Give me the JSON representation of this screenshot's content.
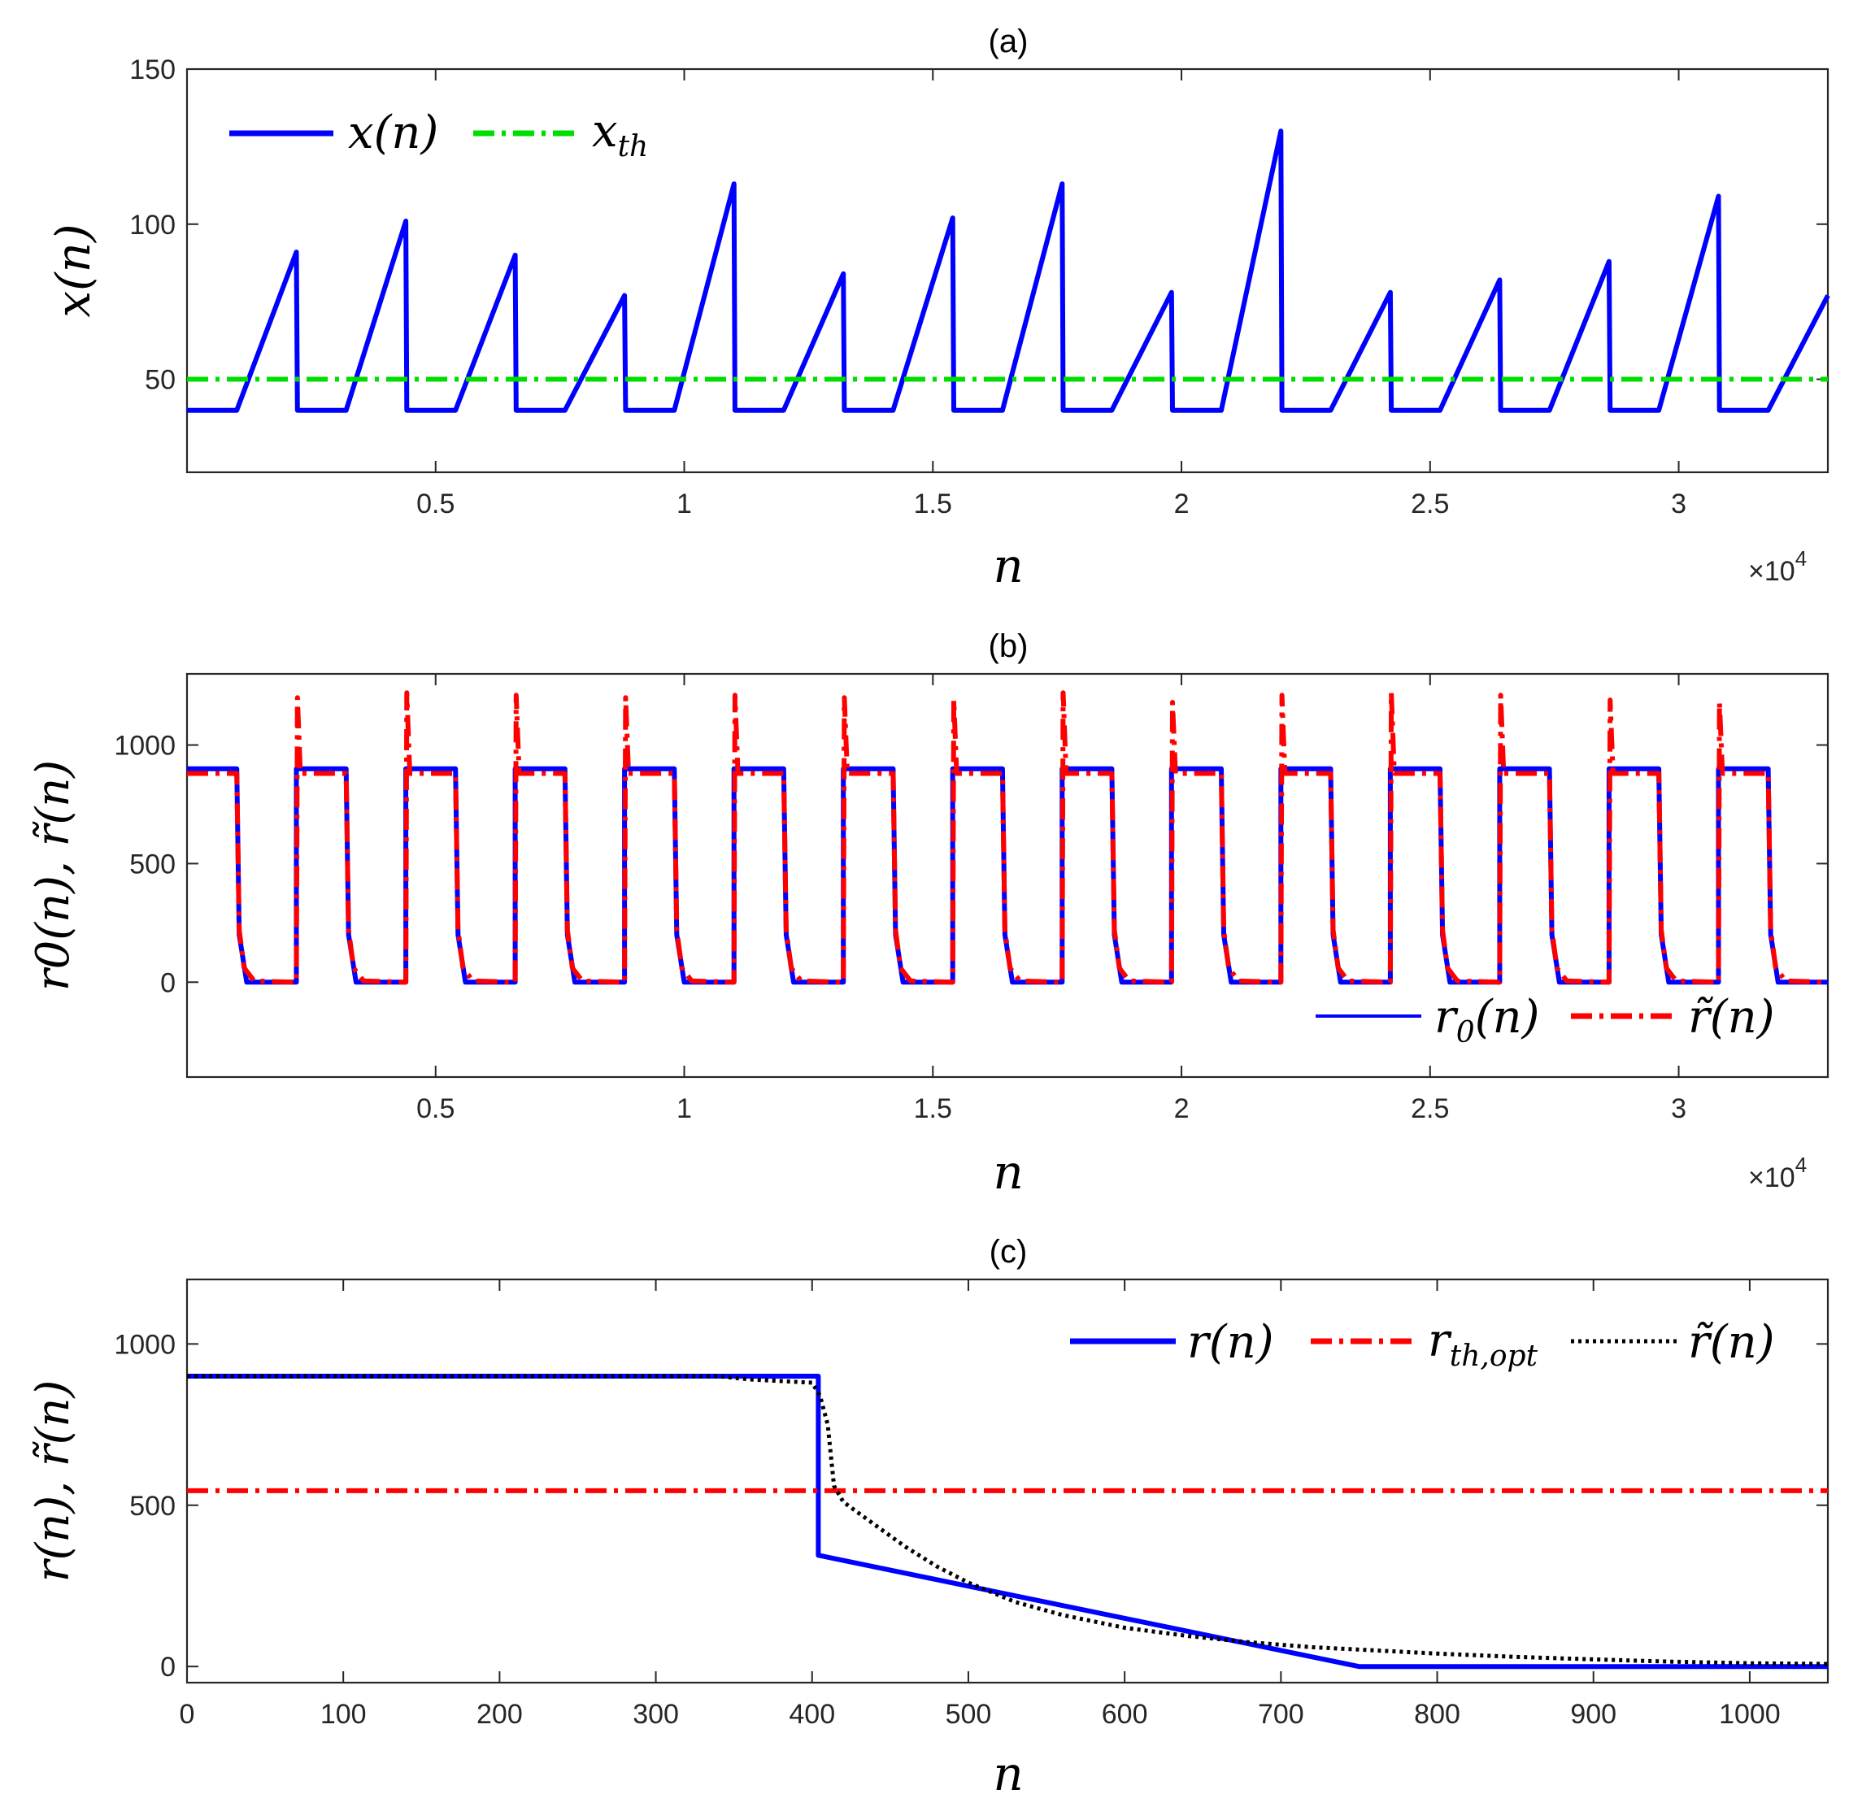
{
  "figure": {
    "colors": {
      "blue": "#0000ff",
      "green": "#00dd00",
      "red": "#ff0000",
      "black": "#000000",
      "axis": "#262626"
    }
  },
  "chart_data": [
    {
      "type": "line",
      "title": "(a)",
      "xlabel": "n",
      "ylabel": "x(n)",
      "x_exponent": "×10^4",
      "x_exponent_base": "×10",
      "x_exponent_power": "4",
      "xlim": [
        0,
        33000
      ],
      "ylim": [
        20,
        150
      ],
      "xticks": [
        5000,
        10000,
        15000,
        20000,
        25000,
        30000
      ],
      "xtick_labels": [
        "0.5",
        "1",
        "1.5",
        "2",
        "2.5",
        "3"
      ],
      "yticks": [
        50,
        100,
        150
      ],
      "ytick_labels": [
        "50",
        "100",
        "150"
      ],
      "legend_position": "top-left",
      "series": [
        {
          "name": "x(n)",
          "color": "#0000ff",
          "style": "solid",
          "x": [
            0,
            1000,
            2200,
            2220,
            3200,
            4400,
            4420,
            5400,
            6600,
            6620,
            7600,
            8800,
            8820,
            9800,
            11000,
            11020,
            12000,
            13200,
            13220,
            14200,
            15400,
            15420,
            16400,
            17600,
            17620,
            18600,
            19800,
            19820,
            20800,
            22000,
            22020,
            23000,
            24200,
            24220,
            25200,
            26400,
            26420,
            27400,
            28600,
            28620,
            29600,
            30800,
            30820,
            31800,
            33000
          ],
          "values": [
            40,
            40,
            91,
            40,
            40,
            101,
            40,
            40,
            90,
            40,
            40,
            77,
            40,
            40,
            113,
            40,
            40,
            84,
            40,
            40,
            102,
            40,
            40,
            113,
            40,
            40,
            78,
            40,
            40,
            130,
            40,
            40,
            78,
            40,
            40,
            82,
            40,
            40,
            88,
            40,
            40,
            109,
            40,
            40,
            77
          ]
        },
        {
          "name": "x_th",
          "label_main": "x",
          "label_sub": "th",
          "color": "#00dd00",
          "style": "dash-dot",
          "x": [
            0,
            33000
          ],
          "values": [
            50,
            50
          ]
        }
      ]
    },
    {
      "type": "line",
      "title": "(b)",
      "xlabel": "n",
      "ylabel": "r0(n), r̃(n)",
      "x_exponent": "×10^4",
      "x_exponent_base": "×10",
      "x_exponent_power": "4",
      "xlim": [
        0,
        33000
      ],
      "ylim": [
        -400,
        1300
      ],
      "xticks": [
        5000,
        10000,
        15000,
        20000,
        25000,
        30000
      ],
      "xtick_labels": [
        "0.5",
        "1",
        "1.5",
        "2",
        "2.5",
        "3"
      ],
      "yticks": [
        0,
        500,
        1000
      ],
      "ytick_labels": [
        "0",
        "500",
        "1000"
      ],
      "legend_position": "bottom-right",
      "period": 2200,
      "cycles": 15,
      "cycle_peaks": [
        1210,
        1200,
        1220,
        1210,
        1200,
        1210,
        1200,
        1190,
        1220,
        1180,
        1210,
        1220,
        1210,
        1190,
        1180
      ],
      "series": [
        {
          "name": "r0(n)",
          "label_main": "r",
          "label_sub": "0",
          "label_tail": "(n)",
          "color": "#0000ff",
          "style": "solid",
          "cycle_x_offsets": [
            0,
            1000,
            1050,
            1200,
            1250,
            2200
          ],
          "cycle_values": [
            900,
            900,
            200,
            0,
            0,
            0
          ]
        },
        {
          "name": "r̃(n)",
          "label_main": "r̃",
          "label_tail": "(n)",
          "color": "#ff0000",
          "style": "dash-dot",
          "cycle_x_offsets": [
            0,
            20,
            80,
            1000,
            1050,
            1150,
            1350,
            2190
          ],
          "cycle_values": [
            0,
            1200,
            880,
            880,
            220,
            60,
            5,
            0
          ]
        }
      ]
    },
    {
      "type": "line",
      "title": "(c)",
      "xlabel": "n",
      "ylabel": "r(n), r̃(n)",
      "xlim": [
        0,
        1050
      ],
      "ylim": [
        -50,
        1200
      ],
      "xticks": [
        0,
        100,
        200,
        300,
        400,
        500,
        600,
        700,
        800,
        900,
        1000
      ],
      "xtick_labels": [
        "0",
        "100",
        "200",
        "300",
        "400",
        "500",
        "600",
        "700",
        "800",
        "900",
        "1000"
      ],
      "yticks": [
        0,
        500,
        1000
      ],
      "ytick_labels": [
        "0",
        "500",
        "1000"
      ],
      "legend_position": "top-right",
      "series": [
        {
          "name": "r(n)",
          "label_main": "r",
          "label_tail": "(n)",
          "color": "#0000ff",
          "style": "solid",
          "x": [
            0,
            404,
            404,
            750,
            1050
          ],
          "values": [
            900,
            900,
            345,
            0,
            0
          ]
        },
        {
          "name": "r_th,opt",
          "label_main": "r",
          "label_sub": "th,opt",
          "color": "#ff0000",
          "style": "dash-dot",
          "x": [
            0,
            1050
          ],
          "values": [
            545,
            545
          ]
        },
        {
          "name": "r̃(n)",
          "label_main": "r̃",
          "label_tail": "(n)",
          "color": "#000000",
          "style": "dotted",
          "x": [
            0,
            340,
            360,
            380,
            400,
            405,
            410,
            414,
            420,
            440,
            460,
            480,
            500,
            530,
            560,
            600,
            640,
            680,
            720,
            760,
            800,
            850,
            900,
            950,
            1000,
            1050
          ],
          "values": [
            900,
            900,
            890,
            885,
            880,
            840,
            750,
            560,
            510,
            440,
            370,
            310,
            260,
            200,
            160,
            120,
            95,
            75,
            60,
            50,
            40,
            30,
            22,
            15,
            10,
            8
          ]
        }
      ]
    }
  ]
}
